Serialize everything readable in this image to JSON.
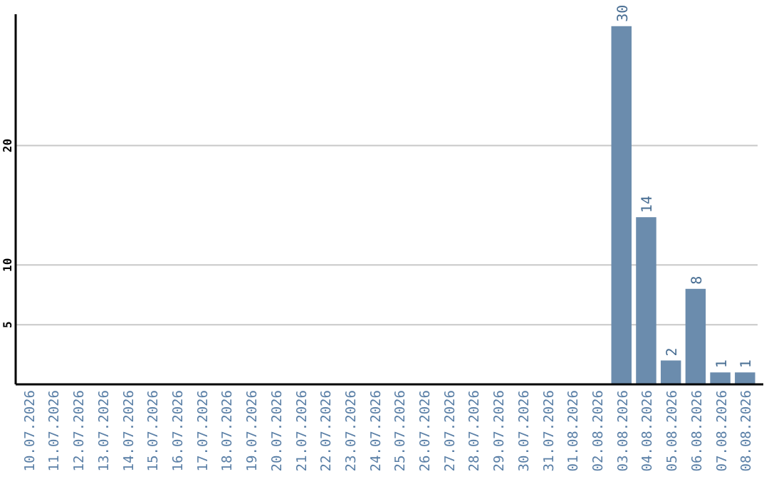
{
  "chart_data": {
    "type": "bar",
    "categories": [
      "10.07.2026",
      "11.07.2026",
      "12.07.2026",
      "13.07.2026",
      "14.07.2026",
      "15.07.2026",
      "16.07.2026",
      "17.07.2026",
      "18.07.2026",
      "19.07.2026",
      "20.07.2026",
      "21.07.2026",
      "22.07.2026",
      "23.07.2026",
      "24.07.2026",
      "25.07.2026",
      "26.07.2026",
      "27.07.2026",
      "28.07.2026",
      "29.07.2026",
      "30.07.2026",
      "31.07.2026",
      "01.08.2026",
      "02.08.2026",
      "03.08.2026",
      "04.08.2026",
      "05.08.2026",
      "06.08.2026",
      "07.08.2026",
      "08.08.2026"
    ],
    "values": [
      0,
      0,
      0,
      0,
      0,
      0,
      0,
      0,
      0,
      0,
      0,
      0,
      0,
      0,
      0,
      0,
      0,
      0,
      0,
      0,
      0,
      0,
      0,
      0,
      30,
      14,
      2,
      8,
      1,
      1
    ],
    "value_labels": [
      null,
      null,
      null,
      null,
      null,
      null,
      null,
      null,
      null,
      null,
      null,
      null,
      null,
      null,
      null,
      null,
      null,
      null,
      null,
      null,
      null,
      null,
      null,
      null,
      "30",
      "14",
      "2",
      "8",
      "1",
      "1"
    ],
    "color": "#6b8cad",
    "ylim": [
      0,
      31
    ],
    "yticks": [
      5,
      10,
      20
    ],
    "grid": "y"
  }
}
